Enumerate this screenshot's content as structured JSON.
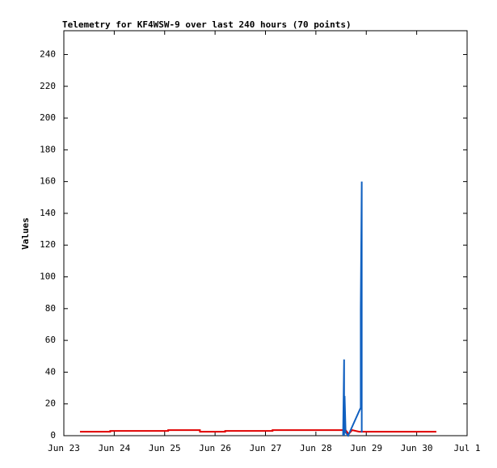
{
  "chart_data": {
    "type": "line",
    "title": "Telemetry for KF4WSW-9 over last 240 hours (70 points)",
    "y_label": "Values",
    "xlim": [
      23,
      31
    ],
    "xticks": [
      {
        "value": 23,
        "label": "Jun 23"
      },
      {
        "value": 24,
        "label": "Jun 24"
      },
      {
        "value": 25,
        "label": "Jun 25"
      },
      {
        "value": 26,
        "label": "Jun 26"
      },
      {
        "value": 27,
        "label": "Jun 27"
      },
      {
        "value": 28,
        "label": "Jun 28"
      },
      {
        "value": 29,
        "label": "Jun 29"
      },
      {
        "value": 30,
        "label": "Jun 30"
      },
      {
        "value": 31,
        "label": "Jul 1"
      }
    ],
    "ylim": [
      0,
      255
    ],
    "yticks": [
      0,
      20,
      40,
      60,
      80,
      100,
      120,
      140,
      160,
      180,
      200,
      220,
      240
    ],
    "grid": false,
    "series": [
      {
        "color": "#e00000",
        "x": [
          23.32,
          23.92,
          23.92,
          25.07,
          25.07,
          25.7,
          25.7,
          26.2,
          26.2,
          27.14,
          27.14,
          28.59,
          28.65,
          28.72,
          28.86,
          30.39
        ],
        "values": [
          2.5,
          2.5,
          3,
          3,
          3.5,
          3.5,
          2.5,
          2.5,
          3,
          3,
          3.5,
          3.5,
          1,
          3.5,
          2.5,
          2.5
        ]
      },
      {
        "color": "#1060c0",
        "x": [
          28.54,
          28.56,
          28.56,
          28.57,
          28.59,
          28.64,
          28.88,
          28.89,
          28.89,
          28.91,
          28.91
        ],
        "values": [
          0,
          48,
          0,
          25,
          2,
          0,
          17,
          17,
          80,
          160,
          2
        ]
      }
    ]
  }
}
